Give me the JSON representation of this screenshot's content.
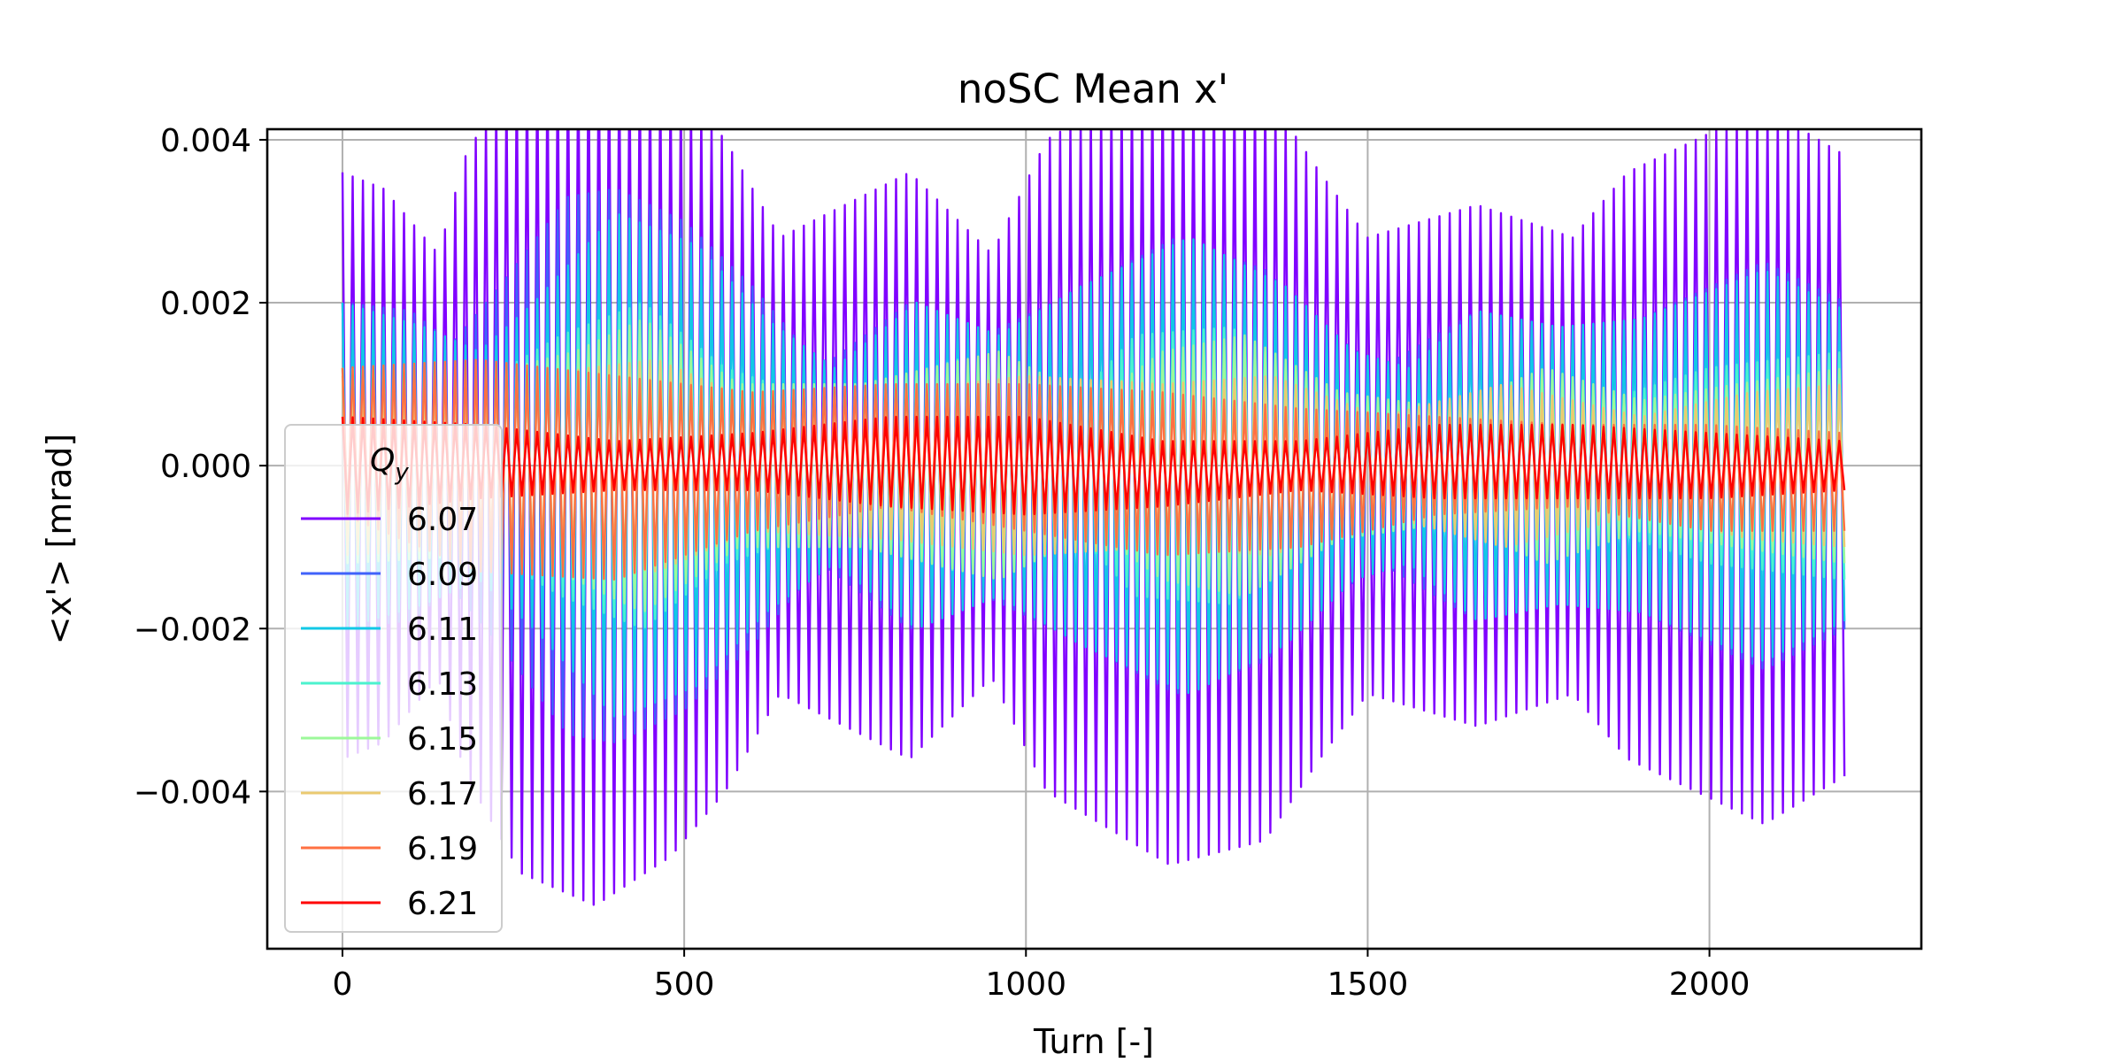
{
  "chart_data": {
    "type": "line",
    "title": "noSC Mean x'",
    "xlabel": "Turn [-]",
    "ylabel": "<x'> [mrad]",
    "xlim": [
      -110,
      2310
    ],
    "ylim": [
      -0.00593,
      0.00413
    ],
    "xticks": [
      0,
      500,
      1000,
      1500,
      2000
    ],
    "xtick_labels": [
      "0",
      "500",
      "1000",
      "1500",
      "2000"
    ],
    "yticks": [
      -0.004,
      -0.002,
      0.0,
      0.002,
      0.004
    ],
    "ytick_labels": [
      "−0.004",
      "−0.002",
      "0.000",
      "0.002",
      "0.004"
    ],
    "grid": true,
    "legend": {
      "title": "Q_y",
      "placement": "center-left"
    },
    "turns": [
      0,
      2200
    ],
    "oscillation_period_turns": 15,
    "series": [
      {
        "name": "6.07",
        "color": "#8000ff",
        "envelope": [
          [
            0,
            0.0036
          ],
          [
            60,
            0.0034
          ],
          [
            140,
            0.0026
          ],
          [
            180,
            -0.0038
          ],
          [
            260,
            -0.005
          ],
          [
            370,
            -0.0054
          ],
          [
            480,
            -0.0048
          ],
          [
            560,
            -0.004
          ],
          [
            640,
            0.0028
          ],
          [
            830,
            0.0036
          ],
          [
            950,
            0.0026
          ],
          [
            1030,
            -0.004
          ],
          [
            1210,
            -0.0049
          ],
          [
            1350,
            -0.0046
          ],
          [
            1430,
            -0.0036
          ],
          [
            1500,
            0.0028
          ],
          [
            1660,
            0.0032
          ],
          [
            1800,
            0.0028
          ],
          [
            1880,
            -0.0036
          ],
          [
            2080,
            -0.0044
          ],
          [
            2200,
            -0.0038
          ]
        ]
      },
      {
        "name": "6.09",
        "color": "#4062fa",
        "envelope": [
          [
            0,
            0.002
          ],
          [
            100,
            0.0019
          ],
          [
            160,
            0.0015
          ],
          [
            230,
            -0.0022
          ],
          [
            330,
            -0.0033
          ],
          [
            400,
            -0.0034
          ],
          [
            500,
            -0.003
          ],
          [
            600,
            -0.0022
          ],
          [
            700,
            0.0012
          ],
          [
            830,
            0.002
          ],
          [
            940,
            0.0016
          ],
          [
            1040,
            -0.002
          ],
          [
            1220,
            -0.0028
          ],
          [
            1350,
            -0.0024
          ],
          [
            1450,
            -0.0016
          ],
          [
            1520,
            0.0012
          ],
          [
            1660,
            0.0019
          ],
          [
            1800,
            0.0016
          ],
          [
            1900,
            -0.0018
          ],
          [
            2080,
            -0.0025
          ],
          [
            2200,
            -0.002
          ]
        ]
      },
      {
        "name": "6.11",
        "color": "#12c8e6",
        "envelope": [
          [
            0,
            0.002
          ],
          [
            120,
            0.0017
          ],
          [
            200,
            0.0014
          ],
          [
            280,
            -0.002
          ],
          [
            400,
            -0.0031
          ],
          [
            520,
            -0.0027
          ],
          [
            620,
            -0.0018
          ],
          [
            720,
            0.0012
          ],
          [
            840,
            0.002
          ],
          [
            960,
            0.0016
          ],
          [
            1080,
            -0.0022
          ],
          [
            1240,
            -0.0028
          ],
          [
            1380,
            -0.0022
          ],
          [
            1480,
            -0.0014
          ],
          [
            1560,
            0.0012
          ],
          [
            1660,
            0.0019
          ],
          [
            1780,
            0.0017
          ],
          [
            1900,
            -0.0018
          ],
          [
            2080,
            -0.0024
          ],
          [
            2200,
            -0.0019
          ]
        ]
      },
      {
        "name": "6.13",
        "color": "#4cf2ce",
        "envelope": [
          [
            0,
            0.0012
          ],
          [
            200,
            0.001
          ],
          [
            320,
            -0.0016
          ],
          [
            440,
            -0.002
          ],
          [
            560,
            -0.0012
          ],
          [
            700,
            0.0008
          ],
          [
            900,
            0.0013
          ],
          [
            1050,
            0.0006
          ],
          [
            1160,
            -0.0016
          ],
          [
            1300,
            -0.0017
          ],
          [
            1450,
            -0.0008
          ],
          [
            1600,
            0.0006
          ],
          [
            1700,
            0.0009
          ],
          [
            1850,
            0.0008
          ],
          [
            2000,
            -0.0012
          ],
          [
            2200,
            -0.0014
          ]
        ]
      },
      {
        "name": "6.15",
        "color": "#9cf89a",
        "envelope": [
          [
            0,
            0.0012
          ],
          [
            200,
            0.0011
          ],
          [
            340,
            -0.0014
          ],
          [
            440,
            -0.0018
          ],
          [
            580,
            -0.001
          ],
          [
            760,
            0.001
          ],
          [
            960,
            0.0014
          ],
          [
            1100,
            0.0008
          ],
          [
            1200,
            -0.0014
          ],
          [
            1320,
            -0.0016
          ],
          [
            1460,
            -0.0009
          ],
          [
            1620,
            0.0007
          ],
          [
            1760,
            0.0012
          ],
          [
            1900,
            0.0008
          ],
          [
            2040,
            -0.001
          ],
          [
            2200,
            -0.0012
          ]
        ]
      },
      {
        "name": "6.17",
        "color": "#eaca70",
        "envelope": [
          [
            0,
            0.0011
          ],
          [
            220,
            0.001
          ],
          [
            360,
            -0.0012
          ],
          [
            460,
            -0.0013
          ],
          [
            600,
            -0.0008
          ],
          [
            800,
            0.0009
          ],
          [
            1000,
            0.0011
          ],
          [
            1200,
            -0.001
          ],
          [
            1360,
            -0.0011
          ],
          [
            1520,
            -0.0006
          ],
          [
            1700,
            0.001
          ],
          [
            1900,
            0.0006
          ],
          [
            2060,
            -0.0009
          ],
          [
            2200,
            -0.001
          ]
        ]
      },
      {
        "name": "6.19",
        "color": "#ff7042",
        "envelope": [
          [
            0,
            0.0012
          ],
          [
            200,
            0.0013
          ],
          [
            400,
            0.0011
          ],
          [
            600,
            0.0009
          ],
          [
            800,
            0.001
          ],
          [
            1000,
            0.001
          ],
          [
            1200,
            0.0009
          ],
          [
            1400,
            0.0007
          ],
          [
            1600,
            0.0006
          ],
          [
            1800,
            0.0005
          ],
          [
            2000,
            0.0005
          ],
          [
            2200,
            0.0004
          ]
        ],
        "lower_envelope": [
          [
            0,
            -0.0006
          ],
          [
            200,
            -0.0013
          ],
          [
            400,
            -0.0014
          ],
          [
            600,
            -0.0008
          ],
          [
            800,
            -0.0005
          ],
          [
            1000,
            -0.0008
          ],
          [
            1200,
            -0.0011
          ],
          [
            1400,
            -0.001
          ],
          [
            1600,
            -0.0006
          ],
          [
            1800,
            -0.0005
          ],
          [
            2000,
            -0.0008
          ],
          [
            2200,
            -0.0008
          ]
        ]
      },
      {
        "name": "6.21",
        "color": "#ff0000",
        "envelope": [
          [
            0,
            0.0006
          ],
          [
            200,
            0.0005
          ],
          [
            400,
            0.0003
          ],
          [
            600,
            0.0004
          ],
          [
            800,
            0.0006
          ],
          [
            1000,
            0.0006
          ],
          [
            1200,
            0.0003
          ],
          [
            1400,
            0.0003
          ],
          [
            1600,
            0.0005
          ],
          [
            1800,
            0.0005
          ],
          [
            2000,
            0.0004
          ],
          [
            2200,
            0.0003
          ]
        ],
        "lower_envelope": [
          [
            0,
            -0.0006
          ],
          [
            200,
            -0.0004
          ],
          [
            400,
            -0.0003
          ],
          [
            600,
            -0.0003
          ],
          [
            800,
            -0.0005
          ],
          [
            1000,
            -0.0006
          ],
          [
            1200,
            -0.0005
          ],
          [
            1400,
            -0.0003
          ],
          [
            1600,
            -0.0004
          ],
          [
            1800,
            -0.0004
          ],
          [
            2000,
            -0.0004
          ],
          [
            2200,
            -0.0003
          ]
        ]
      }
    ]
  }
}
